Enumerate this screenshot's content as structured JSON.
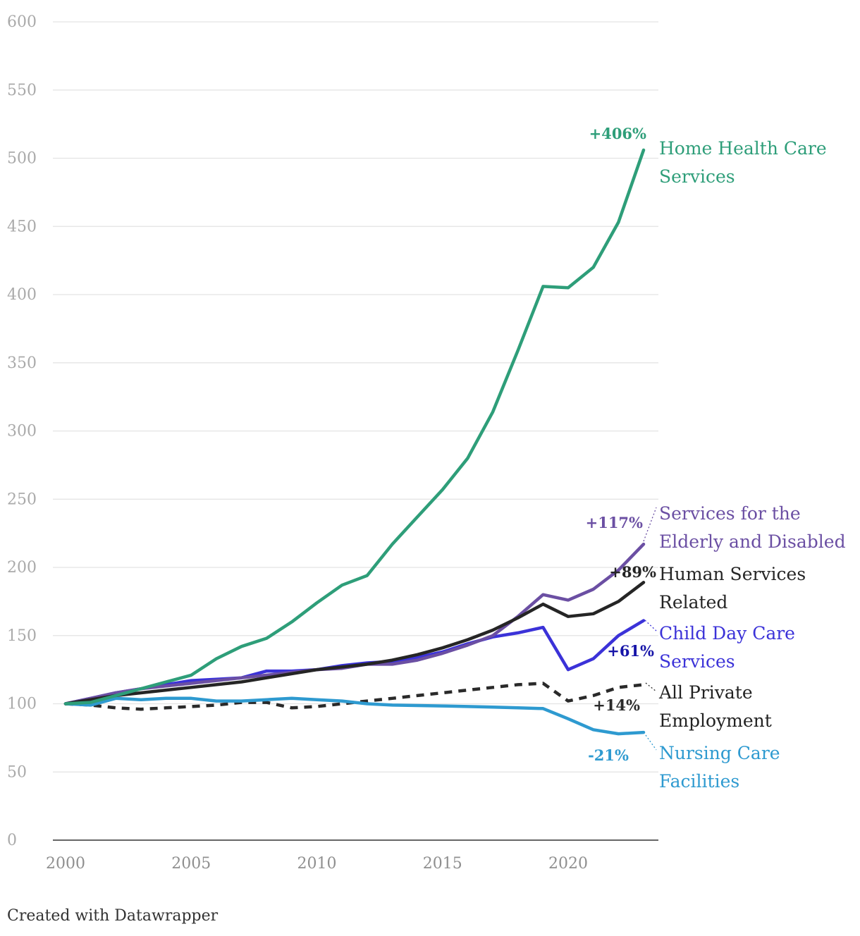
{
  "chart_data": {
    "type": "line",
    "ylim": [
      0,
      600
    ],
    "xlim": [
      2000,
      2023
    ],
    "yticks": [
      0,
      50,
      100,
      150,
      200,
      250,
      300,
      350,
      400,
      450,
      500,
      550,
      600
    ],
    "xticks": [
      2000,
      2005,
      2010,
      2015,
      2020
    ],
    "x": [
      2000,
      2001,
      2002,
      2003,
      2004,
      2005,
      2006,
      2007,
      2008,
      2009,
      2010,
      2011,
      2012,
      2013,
      2014,
      2015,
      2016,
      2017,
      2018,
      2019,
      2020,
      2021,
      2022,
      2023
    ],
    "series": [
      {
        "key": "home",
        "name": "Home Health Care Services",
        "name_lines": [
          "Home Health Care",
          "Services"
        ],
        "change": "+406%",
        "color": "#2e9e79",
        "dashed": false,
        "values": [
          100,
          101,
          106,
          111,
          116,
          121,
          133,
          142,
          148,
          160,
          174,
          187,
          194,
          217,
          237,
          257,
          280,
          314,
          359,
          406,
          405,
          420,
          453,
          506
        ]
      },
      {
        "key": "elderly",
        "name": "Services for the Elderly and Disabled",
        "name_lines": [
          "Services for the",
          "Elderly and Disabled"
        ],
        "change": "+117%",
        "color": "#6b4fa3",
        "dashed": false,
        "values": [
          100,
          104,
          108,
          111,
          113,
          115,
          117,
          119,
          121,
          123,
          125,
          126,
          129,
          129,
          132,
          137,
          143,
          150,
          164,
          180,
          176,
          184,
          198,
          217
        ]
      },
      {
        "key": "human",
        "name": "Human Services Related",
        "name_lines": [
          "Human Services",
          "Related"
        ],
        "change": "+89%",
        "color": "#252525",
        "dashed": false,
        "values": [
          100,
          103,
          106,
          108,
          110,
          112,
          114,
          116,
          119,
          122,
          125,
          127,
          129,
          132,
          136,
          141,
          147,
          154,
          163,
          173,
          164,
          166,
          175,
          189
        ]
      },
      {
        "key": "childcare",
        "name": "Child Day Care Services",
        "name_lines": [
          "Child Day Care",
          "Services"
        ],
        "change": "+61%",
        "color": "#3b32d8",
        "pct_color": "#1614a8",
        "dashed": false,
        "values": [
          100,
          104,
          108,
          111,
          114,
          117,
          118,
          119,
          124,
          124,
          125,
          128,
          130,
          131,
          134,
          138,
          144,
          149,
          152,
          156,
          125,
          133,
          150,
          161
        ]
      },
      {
        "key": "private",
        "name": "All Private Employment",
        "name_lines": [
          "All Private",
          "Employment"
        ],
        "change": "+14%",
        "color": "#2a2a2a",
        "dashed": true,
        "values": [
          100,
          99,
          97,
          96,
          97,
          98,
          99,
          101,
          101,
          97,
          98,
          100,
          102,
          104,
          106,
          108,
          110,
          112,
          114,
          115,
          102,
          106,
          112,
          114
        ]
      },
      {
        "key": "nursing",
        "name": "Nursing Care Facilities",
        "name_lines": [
          "Nursing Care",
          "Facilities"
        ],
        "change": "-21%",
        "color": "#2e9ad0",
        "dashed": false,
        "values": [
          100,
          99,
          104,
          103,
          104,
          104,
          102,
          102,
          103,
          104,
          103,
          102,
          100,
          99,
          98.7,
          98.4,
          98,
          97.5,
          97,
          96.5,
          89,
          81,
          78,
          79
        ]
      }
    ]
  },
  "credit": "Created with Datawrapper"
}
